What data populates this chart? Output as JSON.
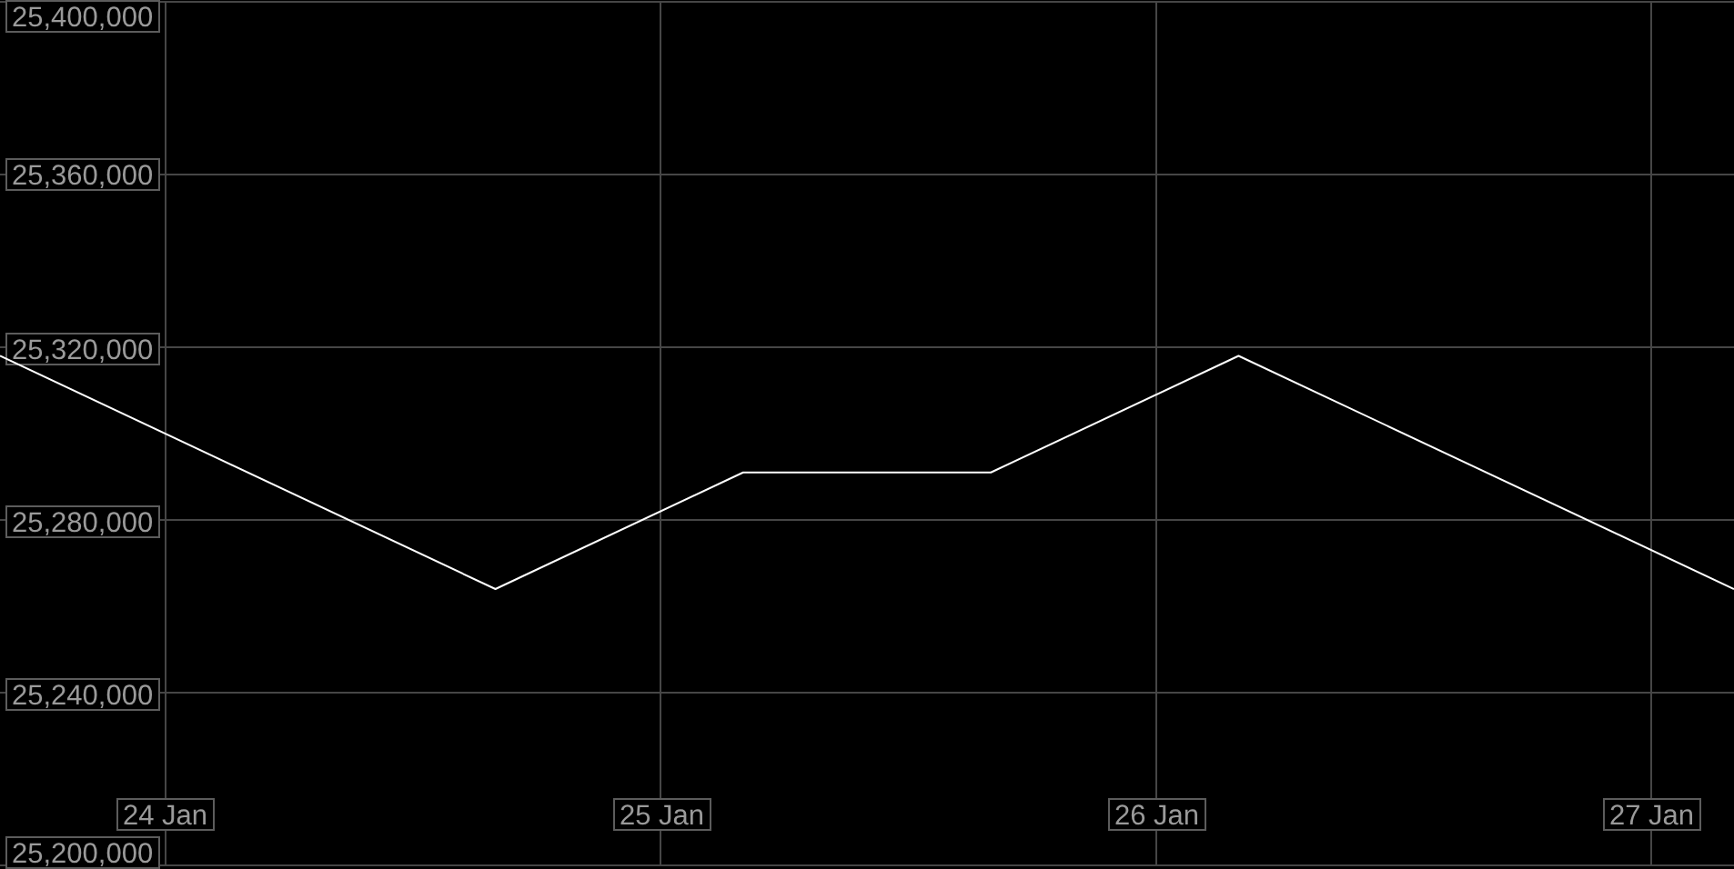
{
  "chart_data": {
    "type": "line",
    "x": [
      "--01-23T16:00",
      "--01-24T16:00",
      "--01-25T04:00",
      "--01-25T16:00",
      "--01-26T04:00",
      "--01-27T04:00"
    ],
    "series": [
      {
        "color": "#ffffff",
        "values": [
          25318000,
          25264000,
          25291000,
          25291000,
          25318000,
          25264000
        ]
      }
    ],
    "xlim": [
      "--01-23T16:00",
      "--01-27T04:00"
    ],
    "xticks": [
      {
        "value": "--01-24",
        "label": "24 Jan"
      },
      {
        "value": "--01-25",
        "label": "25 Jan"
      },
      {
        "value": "--01-26",
        "label": "26 Jan"
      },
      {
        "value": "--01-27",
        "label": "27 Jan"
      }
    ],
    "ylim": [
      25200000,
      25400000
    ],
    "yticks": [
      {
        "value": 25200000,
        "label": "25,200,000"
      },
      {
        "value": 25240000,
        "label": "25,240,000"
      },
      {
        "value": 25280000,
        "label": "25,280,000"
      },
      {
        "value": 25320000,
        "label": "25,320,000"
      },
      {
        "value": 25360000,
        "label": "25,360,000"
      },
      {
        "value": 25400000,
        "label": "25,400,000"
      }
    ],
    "grid": true
  }
}
